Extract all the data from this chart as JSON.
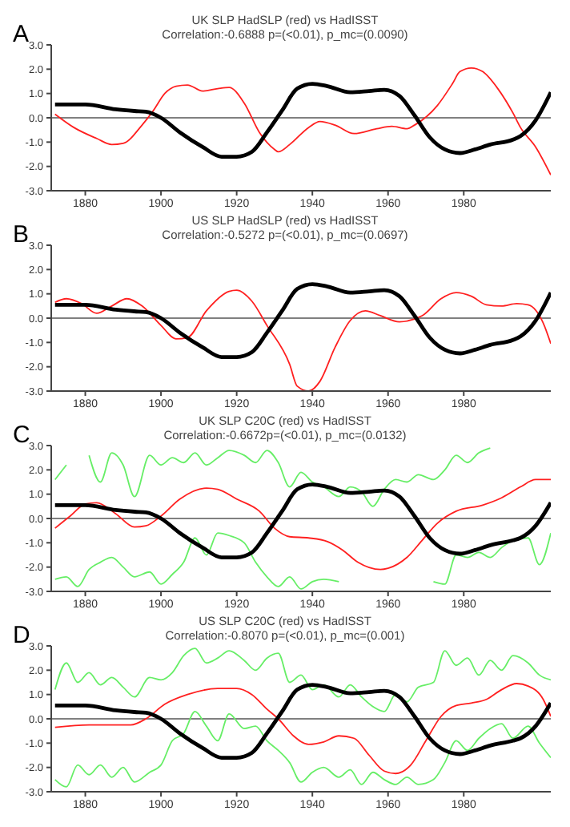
{
  "chart_data": [
    {
      "type": "line",
      "title": "UK SLP HadSLP (red) vs HadISST",
      "subtitle": "Correlation:-0.6888 p=(<0.01), p_mc=(0.0090)",
      "annotations": [
        "A"
      ],
      "xlim": [
        1871,
        2003
      ],
      "xticks": [
        1880,
        1900,
        1920,
        1940,
        1960,
        1980
      ],
      "ylim": [
        -3,
        3
      ],
      "yticks": [
        {
          "value": -3,
          "label": "-3.0"
        },
        {
          "value": -2,
          "label": "-2.0"
        },
        {
          "value": -1,
          "label": "-1.0"
        },
        {
          "value": 0,
          "label": "0.0"
        },
        {
          "value": 1,
          "label": "1.0"
        },
        {
          "value": 2,
          "label": "2.0"
        },
        {
          "value": 3,
          "label": "3.0"
        }
      ],
      "ref_lines": [
        {
          "axis": "y",
          "value": 0,
          "color": "#808080"
        }
      ],
      "grid": false,
      "legend": false,
      "marker": "none",
      "series": [
        {
          "color": "#ff2020",
          "x": [
            1872,
            1877,
            1883,
            1887,
            1890,
            1895,
            1898,
            1901,
            1904,
            1907,
            1911,
            1915,
            1918,
            1922,
            1926,
            1930,
            1931,
            1934,
            1939,
            1942,
            1946,
            1951,
            1957,
            1961,
            1965,
            1967,
            1973,
            1977,
            1979,
            1982,
            1985,
            1989,
            1993,
            1995,
            1999,
            2003
          ],
          "values": [
            0.15,
            -0.4,
            -0.85,
            -1.1,
            -1.05,
            -0.3,
            0.3,
            1.0,
            1.3,
            1.35,
            1.1,
            1.2,
            1.25,
            0.6,
            -0.6,
            -1.3,
            -1.4,
            -1.1,
            -0.4,
            -0.15,
            -0.3,
            -0.65,
            -0.45,
            -0.35,
            -0.45,
            -0.3,
            0.5,
            1.4,
            1.9,
            2.05,
            1.9,
            1.2,
            0.2,
            -0.4,
            -1.2,
            -2.35
          ]
        },
        {
          "color": "#000000",
          "x": [
            1872,
            1880,
            1888,
            1893,
            1896,
            1900,
            1905,
            1911,
            1916,
            1920,
            1924,
            1928,
            1932,
            1936,
            1940,
            1944,
            1950,
            1955,
            1959,
            1963,
            1967,
            1971,
            1975,
            1979,
            1983,
            1987,
            1993,
            1995,
            1999,
            2003
          ],
          "values": [
            0.55,
            0.55,
            0.35,
            0.28,
            0.25,
            0.0,
            -0.6,
            -1.2,
            -1.6,
            -1.6,
            -1.4,
            -0.6,
            0.3,
            1.2,
            1.4,
            1.3,
            1.05,
            1.1,
            1.15,
            0.9,
            0.1,
            -0.8,
            -1.3,
            -1.45,
            -1.3,
            -1.1,
            -0.9,
            -0.75,
            -0.1,
            1.05
          ]
        }
      ]
    },
    {
      "type": "line",
      "title": "US SLP HadSLP (red) vs HadISST",
      "subtitle": "Correlation:-0.5272 p=(<0.01), p_mc=(0.0697)",
      "annotations": [
        "B"
      ],
      "xlim": [
        1871,
        2003
      ],
      "xticks": [
        1880,
        1900,
        1920,
        1940,
        1960,
        1980
      ],
      "ylim": [
        -3,
        3
      ],
      "yticks": [
        {
          "value": -3,
          "label": "-3.0"
        },
        {
          "value": -2,
          "label": "-2.0"
        },
        {
          "value": -1,
          "label": "-1.0"
        },
        {
          "value": 0,
          "label": "0.0"
        },
        {
          "value": 1,
          "label": "1.0"
        },
        {
          "value": 2,
          "label": "2.0"
        },
        {
          "value": 3,
          "label": "3.0"
        }
      ],
      "ref_lines": [
        {
          "axis": "y",
          "value": 0,
          "color": "#808080"
        }
      ],
      "grid": false,
      "legend": false,
      "marker": "none",
      "series": [
        {
          "color": "#ff2020",
          "x": [
            1872,
            1875,
            1879,
            1883,
            1887,
            1891,
            1895,
            1900,
            1904,
            1907,
            1912,
            1918,
            1920,
            1924,
            1928,
            1934,
            1936,
            1939,
            1942,
            1946,
            1950,
            1954,
            1958,
            1963,
            1969,
            1974,
            1978,
            1982,
            1986,
            1990,
            1994,
            1997,
            2001,
            2003
          ],
          "values": [
            0.65,
            0.8,
            0.6,
            0.2,
            0.5,
            0.8,
            0.5,
            -0.3,
            -0.85,
            -0.8,
            0.3,
            1.1,
            1.15,
            0.7,
            -0.3,
            -1.9,
            -2.8,
            -3.0,
            -2.6,
            -1.2,
            -0.1,
            0.3,
            0.1,
            -0.15,
            0.1,
            0.8,
            1.05,
            0.9,
            0.55,
            0.5,
            0.6,
            0.55,
            -0.2,
            -1.05
          ]
        },
        {
          "color": "#000000",
          "x": [
            1872,
            1880,
            1888,
            1893,
            1896,
            1900,
            1905,
            1911,
            1916,
            1920,
            1924,
            1928,
            1932,
            1936,
            1940,
            1944,
            1950,
            1955,
            1959,
            1963,
            1967,
            1971,
            1975,
            1979,
            1983,
            1987,
            1993,
            1995,
            1999,
            2003
          ],
          "values": [
            0.55,
            0.55,
            0.35,
            0.28,
            0.25,
            0.0,
            -0.6,
            -1.2,
            -1.6,
            -1.6,
            -1.4,
            -0.6,
            0.3,
            1.2,
            1.4,
            1.3,
            1.05,
            1.1,
            1.15,
            0.9,
            0.1,
            -0.8,
            -1.3,
            -1.45,
            -1.3,
            -1.1,
            -0.9,
            -0.75,
            -0.1,
            1.05
          ]
        }
      ]
    },
    {
      "type": "line",
      "title": "UK SLP C20C (red) vs HadISST",
      "subtitle": "Correlation:-0.6672p=(<0.01), p_mc=(0.0132)",
      "annotations": [
        "C"
      ],
      "xlim": [
        1871,
        2003
      ],
      "xticks": [
        1880,
        1900,
        1920,
        1940,
        1960,
        1980
      ],
      "ylim": [
        -3,
        3
      ],
      "yticks": [
        {
          "value": -3,
          "label": "-3.0"
        },
        {
          "value": -2,
          "label": "-2.0"
        },
        {
          "value": -1,
          "label": "-1.0"
        },
        {
          "value": 0,
          "label": "0.0"
        },
        {
          "value": 1,
          "label": "1.0"
        },
        {
          "value": 2,
          "label": "2.0"
        },
        {
          "value": 3,
          "label": "3.0"
        }
      ],
      "ref_lines": [
        {
          "axis": "y",
          "value": 0,
          "color": "#808080"
        }
      ],
      "grid": false,
      "legend": false,
      "marker": "none",
      "series": [
        {
          "color": "#66ee66",
          "x": [
            1872,
            1875,
            1878,
            1881,
            1884,
            1887,
            1890,
            1893,
            1897,
            1900,
            1903,
            1906,
            1909,
            1912,
            1915,
            1918,
            1922,
            1925,
            1928,
            1931,
            1934,
            1937,
            1940,
            1943,
            1947,
            1950,
            1953,
            1956,
            1959,
            1962,
            1965,
            1968,
            1972,
            1975,
            1978,
            1981,
            1984,
            1987
          ],
          "values": [
            1.6,
            2.2,
            null,
            2.6,
            1.5,
            2.7,
            2.2,
            0.9,
            2.6,
            2.2,
            2.5,
            2.3,
            2.7,
            2.2,
            2.5,
            2.8,
            2.6,
            2.3,
            2.8,
            2.3,
            1.3,
            1.9,
            1.5,
            1.3,
            0.9,
            1.3,
            1.1,
            0.5,
            1.2,
            1.6,
            1.5,
            1.8,
            1.6,
            2.0,
            2.6,
            2.3,
            2.7,
            2.9
          ]
        },
        {
          "color": "#66ee66",
          "x": [
            1872,
            1875,
            1878,
            1881,
            1884,
            1887,
            1890,
            1893,
            1897,
            1900,
            1903,
            1906,
            1909,
            1912,
            1915,
            1918,
            1922,
            1925,
            1928,
            1931,
            1934,
            1937,
            1940,
            1943,
            1947,
            1950,
            1953,
            1956,
            1959,
            1962,
            1965,
            1968,
            1972,
            1975,
            1978,
            1981,
            1984,
            1987,
            1990,
            1993,
            1997,
            2000,
            2003
          ],
          "values": [
            -2.5,
            -2.4,
            -2.8,
            -2.1,
            -1.8,
            -1.6,
            -2.0,
            -2.4,
            -2.2,
            -2.7,
            -2.3,
            -1.8,
            -0.8,
            -1.5,
            -0.6,
            -0.7,
            -1.0,
            -1.8,
            -2.4,
            -2.8,
            -2.4,
            -2.9,
            -2.6,
            -2.5,
            -2.6,
            null,
            null,
            null,
            null,
            null,
            null,
            null,
            -2.6,
            -2.7,
            -1.5,
            -1.6,
            -1.4,
            -1.6,
            -1.2,
            -0.9,
            -0.8,
            -1.9,
            -0.6
          ]
        },
        {
          "color": "#ff2020",
          "x": [
            1872,
            1876,
            1880,
            1883,
            1888,
            1893,
            1896,
            1900,
            1905,
            1912,
            1915,
            1920,
            1926,
            1930,
            1934,
            1939,
            1944,
            1948,
            1952,
            1958,
            1960,
            1965,
            1969,
            1973,
            1978,
            1985,
            1990,
            1995,
            1999,
            2003
          ],
          "values": [
            -0.4,
            0.1,
            0.6,
            0.65,
            0.2,
            -0.35,
            -0.3,
            0.1,
            0.8,
            1.25,
            1.2,
            0.8,
            0.3,
            -0.4,
            -0.75,
            -0.8,
            -0.95,
            -1.3,
            -1.8,
            -2.1,
            -2.05,
            -1.6,
            -0.9,
            -0.2,
            0.3,
            0.55,
            0.85,
            1.3,
            1.6,
            1.6
          ]
        },
        {
          "color": "#000000",
          "x": [
            1872,
            1880,
            1888,
            1893,
            1896,
            1900,
            1905,
            1911,
            1916,
            1920,
            1924,
            1928,
            1932,
            1936,
            1940,
            1944,
            1950,
            1955,
            1959,
            1963,
            1967,
            1971,
            1975,
            1979,
            1983,
            1987,
            1993,
            1995,
            1999,
            2003
          ],
          "values": [
            0.55,
            0.55,
            0.35,
            0.28,
            0.25,
            0.0,
            -0.6,
            -1.2,
            -1.6,
            -1.6,
            -1.4,
            -0.6,
            0.3,
            1.2,
            1.4,
            1.3,
            1.05,
            1.1,
            1.15,
            0.9,
            0.1,
            -0.8,
            -1.3,
            -1.45,
            -1.3,
            -1.1,
            -0.9,
            -0.8,
            -0.3,
            0.65
          ]
        }
      ]
    },
    {
      "type": "line",
      "title": "US SLP C20C (red) vs HadISST",
      "subtitle": "Correlation:-0.8070 p=(<0.01), p_mc=(0.001)",
      "annotations": [
        "D"
      ],
      "xlim": [
        1871,
        2003
      ],
      "xticks": [
        1880,
        1900,
        1920,
        1940,
        1960,
        1980
      ],
      "ylim": [
        -3,
        3
      ],
      "yticks": [
        {
          "value": -3,
          "label": "-3.0"
        },
        {
          "value": -2,
          "label": "-2.0"
        },
        {
          "value": -1,
          "label": "-1.0"
        },
        {
          "value": 0,
          "label": "0.0"
        },
        {
          "value": 1,
          "label": "1.0"
        },
        {
          "value": 2,
          "label": "2.0"
        },
        {
          "value": 3,
          "label": "3.0"
        }
      ],
      "ref_lines": [
        {
          "axis": "y",
          "value": 0,
          "color": "#808080"
        }
      ],
      "grid": false,
      "legend": false,
      "marker": "none",
      "series": [
        {
          "color": "#66ee66",
          "x": [
            1872,
            1875,
            1878,
            1881,
            1884,
            1887,
            1890,
            1893,
            1897,
            1900,
            1903,
            1906,
            1909,
            1912,
            1915,
            1918,
            1922,
            1925,
            1928,
            1931,
            1934,
            1937,
            1940,
            1943,
            1947,
            1950,
            1953,
            1956,
            1959,
            1962,
            1965,
            1968,
            1972,
            1975,
            1978,
            1981,
            1984,
            1987,
            1990,
            1993,
            1997,
            2000,
            2003
          ],
          "values": [
            1.2,
            2.3,
            1.5,
            1.9,
            1.4,
            1.7,
            1.3,
            0.9,
            1.7,
            1.6,
            1.9,
            2.6,
            2.9,
            2.3,
            2.5,
            2.8,
            2.4,
            2.0,
            2.5,
            2.7,
            1.5,
            1.8,
            1.2,
            1.4,
            0.9,
            1.4,
            0.9,
            0.5,
            0.3,
            1.0,
            0.7,
            1.3,
            1.5,
            2.8,
            2.2,
            2.5,
            1.8,
            2.4,
            2.0,
            2.6,
            2.3,
            1.8,
            1.6
          ]
        },
        {
          "color": "#66ee66",
          "x": [
            1872,
            1875,
            1878,
            1881,
            1884,
            1887,
            1890,
            1893,
            1897,
            1900,
            1903,
            1906,
            1909,
            1912,
            1915,
            1918,
            1922,
            1925,
            1928,
            1931,
            1934,
            1937,
            1940,
            1943,
            1947,
            1950,
            1953,
            1956,
            1959,
            1962,
            1965,
            1968,
            1972,
            1975,
            1978,
            1981,
            1984,
            1987,
            1990,
            1993,
            1997,
            2000,
            2003
          ],
          "values": [
            -2.5,
            -2.8,
            -1.9,
            -2.3,
            -1.9,
            -2.4,
            -2.0,
            -2.6,
            -2.2,
            -1.9,
            -0.9,
            -0.6,
            0.3,
            -0.3,
            -0.9,
            0.2,
            -0.4,
            -0.3,
            -0.9,
            -1.3,
            -1.8,
            -2.6,
            -2.2,
            -2.0,
            -2.4,
            -2.1,
            -2.7,
            -2.2,
            -2.5,
            -2.7,
            -2.4,
            -2.7,
            -2.5,
            -1.8,
            -0.9,
            -1.3,
            -0.8,
            -0.4,
            -0.2,
            -0.8,
            -0.3,
            -1.0,
            -1.6
          ]
        },
        {
          "color": "#ff2020",
          "x": [
            1872,
            1881,
            1892,
            1896,
            1901,
            1907,
            1915,
            1920,
            1924,
            1928,
            1931,
            1935,
            1939,
            1943,
            1947,
            1951,
            1955,
            1959,
            1962,
            1966,
            1970,
            1974,
            1978,
            1982,
            1986,
            1990,
            1994,
            1997,
            2001,
            2003
          ],
          "values": [
            -0.35,
            -0.25,
            -0.25,
            0.0,
            0.6,
            1.0,
            1.25,
            1.25,
            1.0,
            0.4,
            0.0,
            -0.7,
            -1.05,
            -0.95,
            -0.7,
            -0.8,
            -1.5,
            -2.15,
            -2.25,
            -1.9,
            -0.9,
            0.1,
            0.55,
            0.65,
            0.8,
            1.2,
            1.45,
            1.35,
            0.8,
            0.1
          ]
        },
        {
          "color": "#000000",
          "x": [
            1872,
            1880,
            1888,
            1893,
            1896,
            1900,
            1905,
            1911,
            1916,
            1920,
            1924,
            1928,
            1932,
            1936,
            1940,
            1944,
            1950,
            1955,
            1959,
            1963,
            1967,
            1971,
            1975,
            1979,
            1983,
            1987,
            1993,
            1995,
            1999,
            2003
          ],
          "values": [
            0.55,
            0.55,
            0.35,
            0.28,
            0.25,
            0.0,
            -0.6,
            -1.2,
            -1.6,
            -1.6,
            -1.4,
            -0.6,
            0.3,
            1.2,
            1.4,
            1.3,
            1.05,
            1.1,
            1.15,
            0.9,
            0.1,
            -0.8,
            -1.3,
            -1.45,
            -1.3,
            -1.1,
            -0.9,
            -0.8,
            -0.3,
            0.65
          ]
        }
      ]
    }
  ]
}
